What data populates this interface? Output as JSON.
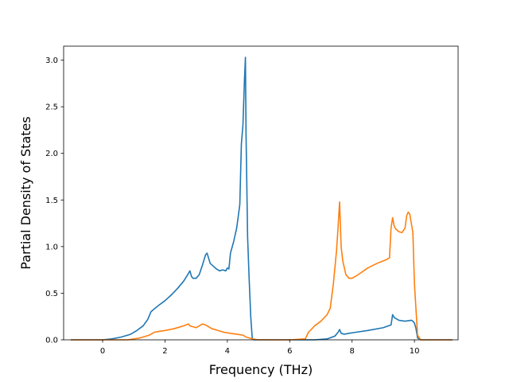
{
  "chart_data": {
    "type": "line",
    "title": "",
    "xlabel": "Frequency (THz)",
    "ylabel": "Partial Density of States",
    "xlim": [
      -1.25,
      11.4
    ],
    "ylim": [
      0,
      3.15
    ],
    "xticks": [
      0,
      2,
      4,
      6,
      8,
      10
    ],
    "yticks": [
      0.0,
      0.5,
      1.0,
      1.5,
      2.0,
      2.5,
      3.0
    ],
    "xtick_labels": [
      "0",
      "2",
      "4",
      "6",
      "8",
      "10"
    ],
    "ytick_labels": [
      "0.0",
      "0.5",
      "1.0",
      "1.5",
      "2.0",
      "2.5",
      "3.0"
    ],
    "grid": false,
    "series": [
      {
        "color": "#1f77b4",
        "x": [
          -1.0,
          0.0,
          0.3,
          0.6,
          0.9,
          1.1,
          1.3,
          1.45,
          1.55,
          1.65,
          1.8,
          2.0,
          2.2,
          2.4,
          2.6,
          2.75,
          2.8,
          2.85,
          2.9,
          3.0,
          3.1,
          3.2,
          3.3,
          3.35,
          3.45,
          3.55,
          3.65,
          3.75,
          3.85,
          3.95,
          4.0,
          4.05,
          4.1,
          4.2,
          4.3,
          4.4,
          4.45,
          4.5,
          4.55,
          4.58,
          4.6,
          4.65,
          4.7,
          4.75,
          4.8,
          4.85,
          5.0,
          6.0,
          6.8,
          7.2,
          7.45,
          7.55,
          7.6,
          7.65,
          7.75,
          7.9,
          8.1,
          8.5,
          9.0,
          9.25,
          9.3,
          9.35,
          9.5,
          9.7,
          9.9,
          9.95,
          10.0,
          10.05,
          10.1,
          10.2,
          11.2
        ],
        "y": [
          0.0,
          0.0,
          0.01,
          0.03,
          0.06,
          0.1,
          0.15,
          0.22,
          0.3,
          0.33,
          0.37,
          0.42,
          0.48,
          0.55,
          0.63,
          0.71,
          0.74,
          0.68,
          0.66,
          0.66,
          0.7,
          0.8,
          0.91,
          0.93,
          0.82,
          0.79,
          0.76,
          0.74,
          0.75,
          0.74,
          0.77,
          0.76,
          0.93,
          1.05,
          1.2,
          1.45,
          2.1,
          2.3,
          2.8,
          3.03,
          2.2,
          1.1,
          0.65,
          0.25,
          0.01,
          0.0,
          0.0,
          0.0,
          0.0,
          0.01,
          0.04,
          0.08,
          0.11,
          0.07,
          0.06,
          0.07,
          0.08,
          0.1,
          0.13,
          0.16,
          0.27,
          0.24,
          0.21,
          0.2,
          0.21,
          0.2,
          0.18,
          0.12,
          0.02,
          0.0,
          0.0
        ]
      },
      {
        "color": "#ff7f0e",
        "x": [
          -1.0,
          0.0,
          0.8,
          1.2,
          1.5,
          1.65,
          1.8,
          2.0,
          2.3,
          2.6,
          2.75,
          2.8,
          2.9,
          3.0,
          3.1,
          3.2,
          3.3,
          3.4,
          3.5,
          3.7,
          3.9,
          4.1,
          4.3,
          4.5,
          4.6,
          4.7,
          4.8,
          5.0,
          6.0,
          6.5,
          6.6,
          6.8,
          7.0,
          7.2,
          7.3,
          7.4,
          7.5,
          7.55,
          7.6,
          7.65,
          7.7,
          7.8,
          7.9,
          8.0,
          8.2,
          8.5,
          8.8,
          9.1,
          9.2,
          9.25,
          9.3,
          9.35,
          9.4,
          9.5,
          9.6,
          9.7,
          9.75,
          9.8,
          9.85,
          9.9,
          9.95,
          10.0,
          10.1,
          10.2,
          10.3,
          11.2
        ],
        "y": [
          0.0,
          0.0,
          0.0,
          0.02,
          0.05,
          0.08,
          0.09,
          0.1,
          0.12,
          0.15,
          0.17,
          0.15,
          0.14,
          0.13,
          0.15,
          0.17,
          0.16,
          0.14,
          0.12,
          0.1,
          0.08,
          0.07,
          0.06,
          0.05,
          0.03,
          0.02,
          0.01,
          0.0,
          0.0,
          0.01,
          0.08,
          0.15,
          0.2,
          0.27,
          0.34,
          0.6,
          0.95,
          1.2,
          1.48,
          1.0,
          0.85,
          0.7,
          0.66,
          0.66,
          0.7,
          0.77,
          0.82,
          0.86,
          0.88,
          1.2,
          1.31,
          1.22,
          1.19,
          1.16,
          1.15,
          1.2,
          1.33,
          1.37,
          1.35,
          1.25,
          1.15,
          0.6,
          0.05,
          0.0,
          0.0,
          0.0
        ]
      }
    ]
  }
}
